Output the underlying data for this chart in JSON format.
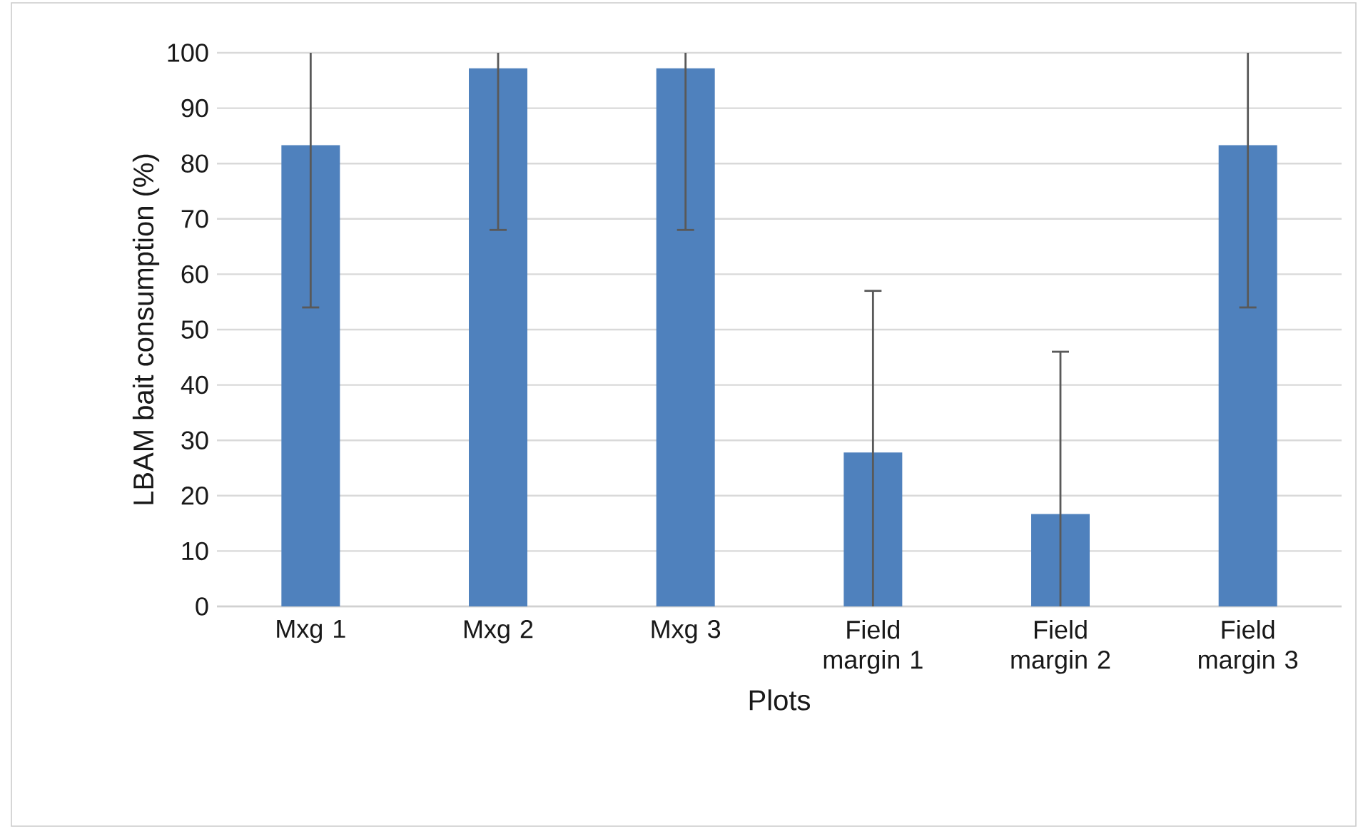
{
  "chart_data": {
    "type": "bar",
    "xlabel": "Plots",
    "ylabel": "LBAM  bait consumption (%)",
    "categories": [
      "Mxg 1",
      "Mxg 2",
      "Mxg 3",
      "Field margin 1",
      "Field margin 2",
      "Field margin 3"
    ],
    "values": [
      83.3,
      97.2,
      97.2,
      27.8,
      16.7,
      83.3
    ],
    "errors": [
      [
        54,
        100
      ],
      [
        68,
        100
      ],
      [
        68,
        100
      ],
      [
        0,
        57
      ],
      [
        0,
        46
      ],
      [
        54,
        100
      ]
    ],
    "color": "#4f81bd",
    "ylim": [
      0,
      100
    ],
    "yticks": [
      0,
      10,
      20,
      30,
      40,
      50,
      60,
      70,
      80,
      90,
      100
    ],
    "grid": "y"
  }
}
